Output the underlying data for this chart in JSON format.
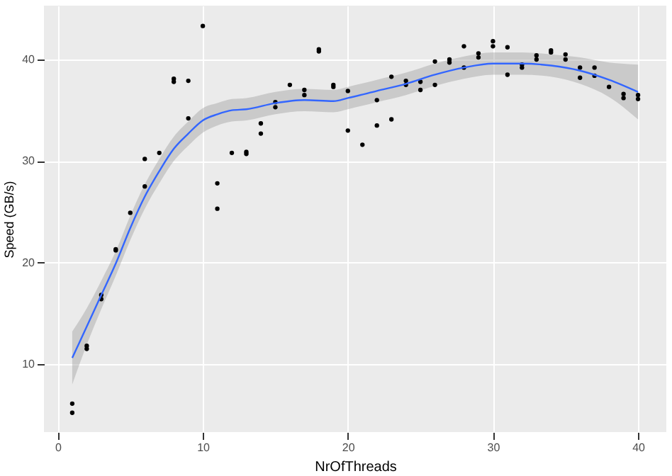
{
  "chart_data": {
    "type": "scatter",
    "xlabel": "NrOfThreads",
    "ylabel": "Speed (GB/s)",
    "xlim": [
      -0.95,
      41.95
    ],
    "ylim": [
      3.3,
      45.3
    ],
    "xticks": [
      0,
      10,
      20,
      30,
      40
    ],
    "yticks": [
      10,
      20,
      30,
      40
    ],
    "grid": true,
    "series": [
      {
        "color": "#000000",
        "marker": "circle",
        "x": [
          1,
          1,
          2,
          2,
          3,
          3,
          4,
          4,
          5,
          6,
          6,
          7,
          8,
          8,
          9,
          9,
          10,
          11,
          11,
          12,
          13,
          13,
          14,
          14,
          15,
          15,
          16,
          17,
          17,
          18,
          18,
          19,
          19,
          20,
          20,
          21,
          22,
          22,
          23,
          23,
          24,
          24,
          25,
          25,
          26,
          26,
          27,
          27,
          28,
          28,
          29,
          29,
          30,
          30,
          31,
          31,
          32,
          32,
          33,
          33,
          34,
          34,
          35,
          35,
          36,
          36,
          37,
          37,
          38,
          39,
          39,
          40,
          40
        ],
        "values": [
          6.1,
          5.2,
          11.8,
          11.5,
          16.8,
          16.4,
          21.3,
          21.2,
          24.9,
          30.2,
          27.5,
          30.8,
          38.1,
          37.8,
          37.9,
          34.2,
          43.3,
          27.8,
          25.3,
          30.8,
          30.9,
          30.7,
          33.7,
          32.7,
          35.8,
          35.3,
          37.5,
          37.0,
          36.5,
          41.0,
          40.8,
          37.5,
          37.3,
          36.9,
          33.0,
          31.6,
          36.0,
          33.5,
          38.3,
          34.1,
          37.9,
          37.5,
          37.8,
          37.0,
          39.8,
          37.5,
          40.0,
          39.7,
          41.3,
          39.2,
          40.6,
          40.2,
          41.8,
          41.3,
          41.2,
          38.5,
          39.5,
          39.2,
          40.4,
          40.0,
          40.9,
          40.7,
          40.5,
          40.0,
          39.2,
          38.2,
          39.2,
          38.4,
          37.3,
          36.6,
          36.2,
          36.5,
          36.1
        ]
      },
      {
        "type": "line",
        "marker": "none",
        "color": "#3366ff",
        "x": [
          1,
          2,
          3,
          4,
          5,
          6,
          7,
          8,
          9,
          10,
          11,
          12,
          13,
          15,
          17,
          19,
          20,
          22,
          24,
          26,
          28,
          30,
          32,
          34,
          36,
          38,
          40
        ],
        "values": [
          10.6,
          13.7,
          16.8,
          19.9,
          23.4,
          26.5,
          29.0,
          31.2,
          32.7,
          34.0,
          34.6,
          35.0,
          35.1,
          35.7,
          36.0,
          35.9,
          36.2,
          36.9,
          37.6,
          38.5,
          39.2,
          39.6,
          39.6,
          39.4,
          38.9,
          38.0,
          36.8
        ],
        "lower": [
          8.0,
          11.9,
          15.4,
          18.7,
          22.2,
          25.3,
          27.8,
          30.0,
          31.5,
          32.8,
          33.5,
          33.9,
          34.0,
          34.6,
          34.9,
          34.8,
          35.1,
          35.8,
          36.5,
          37.4,
          38.1,
          38.5,
          38.5,
          38.3,
          37.6,
          36.3,
          34.1
        ],
        "upper": [
          13.2,
          15.5,
          18.2,
          21.1,
          24.6,
          27.7,
          30.2,
          32.4,
          33.9,
          35.2,
          35.7,
          36.1,
          36.2,
          36.8,
          37.1,
          37.0,
          37.3,
          38.0,
          38.7,
          39.6,
          40.3,
          40.7,
          40.7,
          40.5,
          40.2,
          39.7,
          39.5
        ]
      }
    ]
  }
}
